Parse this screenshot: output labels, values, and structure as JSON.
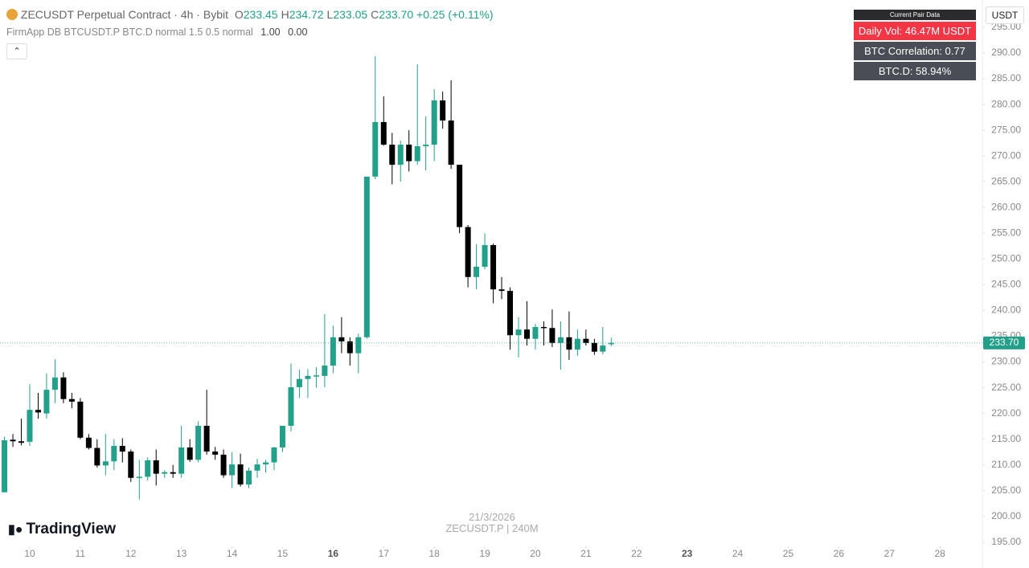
{
  "header": {
    "symbol": "ZECUSDT Perpetual Contract",
    "interval": "4h",
    "exchange": "Bybit",
    "ohlc": [
      {
        "label": "O",
        "value": "233.45"
      },
      {
        "label": "H",
        "value": "234.72"
      },
      {
        "label": "L",
        "value": "233.05"
      },
      {
        "label": "C",
        "value": "233.70"
      }
    ],
    "change": "+0.25 (+0.11%)",
    "indicator": "FirmApp DB BTCUSDT.P BTC.D normal 1.5 0.5 normal",
    "indicator_values": [
      "1.00",
      "0.00"
    ]
  },
  "table": {
    "title": "Current Pair Data",
    "rows": [
      "Daily Vol: 46.47M USDT",
      "BTC Correlation: 0.77",
      "BTC.D: 58.94%"
    ]
  },
  "currency": "USDT",
  "watermark": [
    "21/3/2026",
    "ZECUSDT.P | 240M"
  ],
  "logo": "TradingView",
  "chart_data": {
    "type": "candlestick",
    "up_color": "#22a08a",
    "down_color": "#000000",
    "last_price": {
      "value": 233.7,
      "label": "233.70"
    },
    "x": [
      9.5,
      9.667,
      9.833,
      10,
      10.167,
      10.333,
      10.5,
      10.667,
      10.833,
      11,
      11.167,
      11.333,
      11.5,
      11.667,
      11.833,
      12,
      12.167,
      12.333,
      12.5,
      12.667,
      12.833,
      13,
      13.167,
      13.333,
      13.5,
      13.667,
      13.833,
      14,
      14.167,
      14.333,
      14.5,
      14.667,
      14.833,
      15,
      15.167,
      15.333,
      15.5,
      15.667,
      15.833,
      16,
      16.167,
      16.333,
      16.5,
      16.667,
      16.833,
      17,
      17.167,
      17.333,
      17.5,
      17.667,
      17.833,
      18,
      18.167,
      18.333,
      18.5,
      18.667,
      18.833,
      19,
      19.167,
      19.333,
      19.5,
      19.667,
      19.833,
      20,
      20.167,
      20.333,
      20.5,
      20.667,
      20.833,
      21,
      21.167,
      21.333,
      21.5
    ],
    "open": [
      204.7,
      214.9,
      214.6,
      214.5,
      220.7,
      220,
      224.6,
      227,
      222.8,
      222.3,
      215.3,
      213.3,
      209.9,
      210.7,
      213.7,
      212.6,
      207.5,
      207.7,
      210.9,
      208.3,
      208.6,
      208.3,
      213.4,
      211,
      217.6,
      212.6,
      212,
      208,
      210.1,
      206.2,
      208.9,
      210.1,
      210.5,
      213.4,
      217.6,
      225.1,
      226.7,
      227.3,
      227.3,
      229.3,
      234.8,
      234,
      231.7,
      234.8,
      266,
      276.6,
      272.2,
      268.3,
      272.2,
      269,
      271.9,
      272.2,
      280.8,
      276.9,
      268.3,
      256.2,
      246.5,
      248.5,
      252.7,
      244.1,
      243.8,
      235.2,
      236.3,
      234.5,
      236.8,
      236.6,
      233.7,
      234.8,
      232.4,
      234.5,
      233.7,
      232,
      233.45
    ],
    "high": [
      215.5,
      216,
      219,
      225.7,
      224,
      227.8,
      230.5,
      228,
      224,
      223,
      216,
      215,
      216,
      215,
      215.2,
      213,
      211,
      211.5,
      213,
      209,
      210,
      217.6,
      215,
      218.5,
      224.6,
      213.5,
      213,
      212.5,
      212.2,
      209.5,
      211.2,
      211,
      213.5,
      217.6,
      229.7,
      228.5,
      228.6,
      229,
      239.3,
      237.1,
      238.7,
      234.8,
      235.5,
      266,
      289.4,
      281.6,
      274.5,
      273,
      275,
      287.8,
      277.7,
      283,
      282.5,
      284.7,
      268.3,
      256.6,
      252.9,
      255,
      253,
      246.5,
      244.5,
      238.7,
      241.8,
      237.4,
      237.9,
      240.2,
      237.9,
      239.8,
      236.3,
      236.3,
      234.5,
      236.8,
      234.72
    ],
    "low": [
      204.7,
      213.5,
      213.8,
      213.7,
      219,
      219,
      222,
      222,
      221,
      215,
      213,
      209.5,
      208,
      209,
      210.5,
      206.7,
      203.3,
      207,
      206,
      207.5,
      207.5,
      207.5,
      210.6,
      210.5,
      212,
      211,
      207.5,
      205.5,
      205.8,
      205.5,
      207.5,
      208.5,
      209,
      212.5,
      216.5,
      223,
      223,
      225,
      225.1,
      227.8,
      231.7,
      229.3,
      227.8,
      234.5,
      265.5,
      272,
      264.5,
      265,
      267,
      268.3,
      267.2,
      269,
      275.3,
      267.5,
      255,
      244.5,
      244.1,
      248,
      241.4,
      242.2,
      232.4,
      230.9,
      233.2,
      232.4,
      233.2,
      232.9,
      228.5,
      230.4,
      231.2,
      233.2,
      231.4,
      231.5,
      233.05
    ],
    "close": [
      214.8,
      214.6,
      214.3,
      220.7,
      220.2,
      224.6,
      227,
      222.8,
      222.3,
      215.3,
      213.3,
      209.9,
      210.7,
      213.7,
      212.6,
      207.5,
      207.7,
      210.9,
      208.3,
      208.6,
      208.3,
      213.4,
      211,
      217.6,
      212.6,
      212,
      208,
      210.1,
      206.2,
      208.9,
      210.1,
      210.5,
      213.4,
      217.6,
      225.1,
      226.7,
      227.3,
      227.4,
      229.3,
      234.8,
      234,
      231.7,
      234.8,
      266,
      276.6,
      272.2,
      268.3,
      272.2,
      269,
      271.9,
      272.2,
      280.8,
      276.9,
      268.3,
      256.2,
      246.5,
      248.5,
      252.7,
      244.1,
      243.8,
      235.2,
      236.3,
      234.5,
      236.8,
      236.6,
      233.7,
      234.8,
      232.4,
      234.5,
      233.7,
      232,
      233.2,
      233.7
    ],
    "xlim": [
      9.412,
      28.84
    ],
    "xticks": [
      10,
      11,
      12,
      13,
      14,
      15,
      16,
      17,
      18,
      19,
      20,
      21,
      22,
      23,
      24,
      25,
      26,
      27,
      28
    ],
    "xticks_bold": [
      16,
      23
    ],
    "ylim": [
      194.2,
      300.3
    ],
    "yticks": [
      {
        "value": 195,
        "label": "195.00"
      },
      {
        "value": 200,
        "label": "200.00"
      },
      {
        "value": 205,
        "label": "205.00"
      },
      {
        "value": 210,
        "label": "210.00"
      },
      {
        "value": 215,
        "label": "215.00"
      },
      {
        "value": 220,
        "label": "220.00"
      },
      {
        "value": 225,
        "label": "225.00"
      },
      {
        "value": 230,
        "label": "230.00"
      },
      {
        "value": 235,
        "label": "235.00"
      },
      {
        "value": 240,
        "label": "240.00"
      },
      {
        "value": 245,
        "label": "245.00"
      },
      {
        "value": 250,
        "label": "250.00"
      },
      {
        "value": 255,
        "label": "255.00"
      },
      {
        "value": 260,
        "label": "260.00"
      },
      {
        "value": 265,
        "label": "265.00"
      },
      {
        "value": 270,
        "label": "270.00"
      },
      {
        "value": 275,
        "label": "275.00"
      },
      {
        "value": 280,
        "label": "280.00"
      },
      {
        "value": 285,
        "label": "285.00"
      },
      {
        "value": 290,
        "label": "290.00"
      },
      {
        "value": 295,
        "label": "295.00"
      }
    ]
  }
}
